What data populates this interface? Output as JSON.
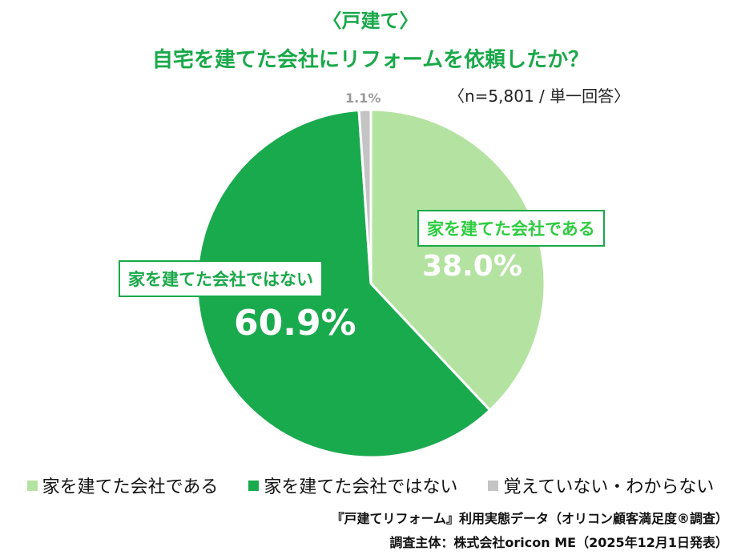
{
  "header": {
    "subtitle": "〈戸建て〉",
    "title": "自宅を建てた会社にリフォームを依頼したか？",
    "note": "〈n=5,801 / 単一回答〉"
  },
  "chart_data": {
    "type": "pie",
    "title": "自宅を建てた会社にリフォームを依頼したか？",
    "categories": [
      "家を建てた会社である",
      "家を建てた会社ではない",
      "覚えていない・わからない"
    ],
    "values": [
      38.0,
      60.9,
      1.1
    ],
    "value_labels": [
      "38.0%",
      "60.9%",
      "1.1%"
    ],
    "colors": [
      "#b4e3a1",
      "#1aaa4e",
      "#c4c4c4"
    ],
    "start_angle_deg": 0,
    "direction": "clockwise",
    "legend_position": "bottom"
  },
  "callouts": {
    "slice_a": "家を建てた会社である",
    "slice_b": "家を建てた会社ではない"
  },
  "legend": [
    {
      "label": "家を建てた会社である",
      "color": "#b4e3a1"
    },
    {
      "label": "家を建てた会社ではない",
      "color": "#1aaa4e"
    },
    {
      "label": "覚えていない・わからない",
      "color": "#c4c4c4"
    }
  ],
  "footer": {
    "source": "『戸建てリフォーム』利用実態データ（オリコン顧客満足度®調査）",
    "sponsor": "調査主体：株式会社oricon ME（2025年12月1日発表）"
  }
}
